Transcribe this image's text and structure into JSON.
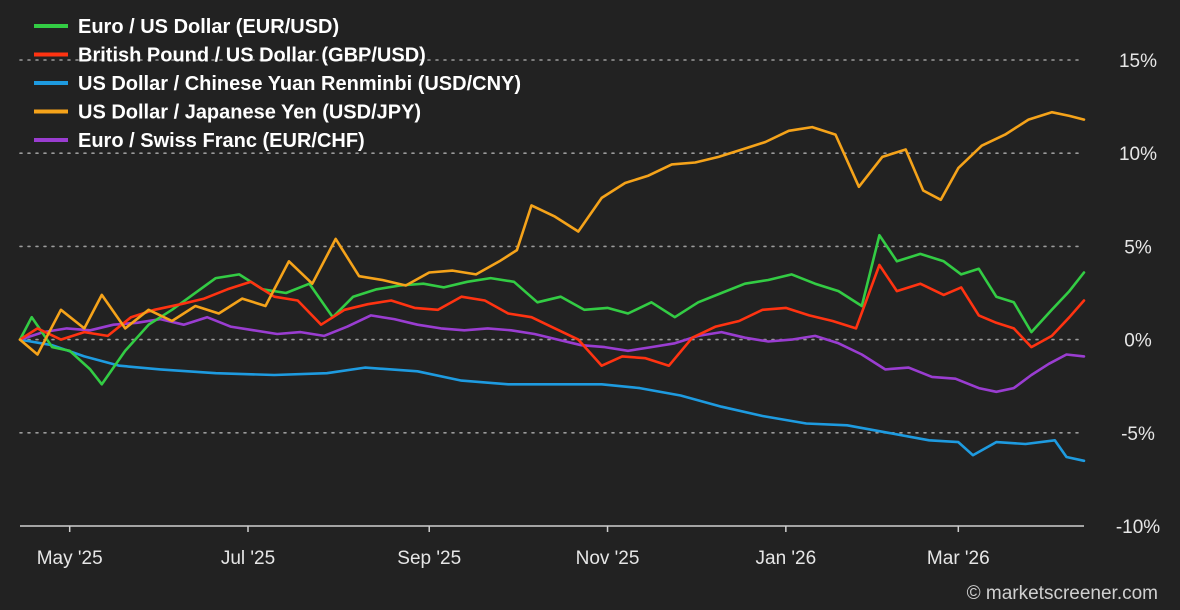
{
  "credit": "© marketscreener.com",
  "chart_data": {
    "type": "line",
    "ylim": [
      -10,
      15
    ],
    "y_ticks": [
      {
        "value": 15,
        "label": "15%"
      },
      {
        "value": 10,
        "label": "10%"
      },
      {
        "value": 5,
        "label": "5%"
      },
      {
        "value": 0,
        "label": "0%"
      },
      {
        "value": -5,
        "label": "-5%"
      },
      {
        "value": -10,
        "label": "-10%"
      }
    ],
    "x_range": [
      "2025-04-14",
      "2026-04-13"
    ],
    "x_ticks": [
      {
        "date": "2025-05-01",
        "label": "May '25"
      },
      {
        "date": "2025-07-01",
        "label": "Jul '25"
      },
      {
        "date": "2025-09-01",
        "label": "Sep '25"
      },
      {
        "date": "2025-11-01",
        "label": "Nov '25"
      },
      {
        "date": "2026-01-01",
        "label": "Jan '26"
      },
      {
        "date": "2026-03-01",
        "label": "Mar '26"
      }
    ],
    "grid": true,
    "legend_position": "top-left",
    "series": [
      {
        "name": "Euro / US Dollar (EUR/USD)",
        "color": "#33cc44",
        "points": [
          [
            "2025-04-14",
            0.0
          ],
          [
            "2025-04-18",
            1.2
          ],
          [
            "2025-04-25",
            -0.4
          ],
          [
            "2025-05-01",
            -0.6
          ],
          [
            "2025-05-08",
            -1.6
          ],
          [
            "2025-05-12",
            -2.4
          ],
          [
            "2025-05-20",
            -0.6
          ],
          [
            "2025-05-28",
            0.8
          ],
          [
            "2025-06-05",
            1.6
          ],
          [
            "2025-06-12",
            2.4
          ],
          [
            "2025-06-20",
            3.3
          ],
          [
            "2025-06-28",
            3.5
          ],
          [
            "2025-07-06",
            2.7
          ],
          [
            "2025-07-14",
            2.5
          ],
          [
            "2025-07-22",
            3.0
          ],
          [
            "2025-07-30",
            1.2
          ],
          [
            "2025-08-06",
            2.3
          ],
          [
            "2025-08-14",
            2.7
          ],
          [
            "2025-08-22",
            2.9
          ],
          [
            "2025-08-30",
            3.0
          ],
          [
            "2025-09-06",
            2.8
          ],
          [
            "2025-09-14",
            3.1
          ],
          [
            "2025-09-22",
            3.3
          ],
          [
            "2025-09-30",
            3.1
          ],
          [
            "2025-10-08",
            2.0
          ],
          [
            "2025-10-16",
            2.3
          ],
          [
            "2025-10-24",
            1.6
          ],
          [
            "2025-11-01",
            1.7
          ],
          [
            "2025-11-08",
            1.4
          ],
          [
            "2025-11-16",
            2.0
          ],
          [
            "2025-11-24",
            1.2
          ],
          [
            "2025-12-02",
            2.0
          ],
          [
            "2025-12-10",
            2.5
          ],
          [
            "2025-12-18",
            3.0
          ],
          [
            "2025-12-26",
            3.2
          ],
          [
            "2026-01-03",
            3.5
          ],
          [
            "2026-01-11",
            3.0
          ],
          [
            "2026-01-19",
            2.6
          ],
          [
            "2026-01-27",
            1.8
          ],
          [
            "2026-02-02",
            5.6
          ],
          [
            "2026-02-08",
            4.2
          ],
          [
            "2026-02-16",
            4.6
          ],
          [
            "2026-02-24",
            4.2
          ],
          [
            "2026-03-02",
            3.5
          ],
          [
            "2026-03-08",
            3.8
          ],
          [
            "2026-03-14",
            2.3
          ],
          [
            "2026-03-20",
            2.0
          ],
          [
            "2026-03-26",
            0.4
          ],
          [
            "2026-04-02",
            1.6
          ],
          [
            "2026-04-08",
            2.6
          ],
          [
            "2026-04-13",
            3.6
          ]
        ]
      },
      {
        "name": "British Pound / US Dollar (GBP/USD)",
        "color": "#ff3311",
        "points": [
          [
            "2025-04-14",
            0.0
          ],
          [
            "2025-04-20",
            0.6
          ],
          [
            "2025-04-28",
            0.0
          ],
          [
            "2025-05-06",
            0.4
          ],
          [
            "2025-05-14",
            0.2
          ],
          [
            "2025-05-22",
            1.2
          ],
          [
            "2025-05-30",
            1.6
          ],
          [
            "2025-06-08",
            1.9
          ],
          [
            "2025-06-16",
            2.2
          ],
          [
            "2025-06-24",
            2.7
          ],
          [
            "2025-07-02",
            3.1
          ],
          [
            "2025-07-10",
            2.3
          ],
          [
            "2025-07-18",
            2.1
          ],
          [
            "2025-07-26",
            0.8
          ],
          [
            "2025-08-03",
            1.6
          ],
          [
            "2025-08-11",
            1.9
          ],
          [
            "2025-08-19",
            2.1
          ],
          [
            "2025-08-27",
            1.7
          ],
          [
            "2025-09-04",
            1.6
          ],
          [
            "2025-09-12",
            2.3
          ],
          [
            "2025-09-20",
            2.1
          ],
          [
            "2025-09-28",
            1.4
          ],
          [
            "2025-10-06",
            1.2
          ],
          [
            "2025-10-14",
            0.6
          ],
          [
            "2025-10-22",
            0.0
          ],
          [
            "2025-10-30",
            -1.4
          ],
          [
            "2025-11-06",
            -0.9
          ],
          [
            "2025-11-14",
            -1.0
          ],
          [
            "2025-11-22",
            -1.4
          ],
          [
            "2025-11-30",
            0.1
          ],
          [
            "2025-12-08",
            0.7
          ],
          [
            "2025-12-16",
            1.0
          ],
          [
            "2025-12-24",
            1.6
          ],
          [
            "2026-01-01",
            1.7
          ],
          [
            "2026-01-09",
            1.3
          ],
          [
            "2026-01-17",
            1.0
          ],
          [
            "2026-01-25",
            0.6
          ],
          [
            "2026-02-02",
            4.0
          ],
          [
            "2026-02-08",
            2.6
          ],
          [
            "2026-02-16",
            3.0
          ],
          [
            "2026-02-24",
            2.4
          ],
          [
            "2026-03-02",
            2.8
          ],
          [
            "2026-03-08",
            1.3
          ],
          [
            "2026-03-14",
            0.9
          ],
          [
            "2026-03-20",
            0.6
          ],
          [
            "2026-03-26",
            -0.4
          ],
          [
            "2026-04-02",
            0.2
          ],
          [
            "2026-04-08",
            1.2
          ],
          [
            "2026-04-13",
            2.1
          ]
        ]
      },
      {
        "name": "US Dollar / Chinese Yuan Renminbi (USD/CNY)",
        "color": "#1e9be0",
        "points": [
          [
            "2025-04-14",
            0.0
          ],
          [
            "2025-04-25",
            -0.3
          ],
          [
            "2025-05-06",
            -0.9
          ],
          [
            "2025-05-18",
            -1.4
          ],
          [
            "2025-06-01",
            -1.6
          ],
          [
            "2025-06-20",
            -1.8
          ],
          [
            "2025-07-10",
            -1.9
          ],
          [
            "2025-07-28",
            -1.8
          ],
          [
            "2025-08-10",
            -1.5
          ],
          [
            "2025-08-28",
            -1.7
          ],
          [
            "2025-09-12",
            -2.2
          ],
          [
            "2025-09-28",
            -2.4
          ],
          [
            "2025-10-15",
            -2.4
          ],
          [
            "2025-10-30",
            -2.4
          ],
          [
            "2025-11-12",
            -2.6
          ],
          [
            "2025-11-26",
            -3.0
          ],
          [
            "2025-12-10",
            -3.6
          ],
          [
            "2025-12-24",
            -4.1
          ],
          [
            "2026-01-08",
            -4.5
          ],
          [
            "2026-01-22",
            -4.6
          ],
          [
            "2026-02-05",
            -5.0
          ],
          [
            "2026-02-19",
            -5.4
          ],
          [
            "2026-03-01",
            -5.5
          ],
          [
            "2026-03-06",
            -6.2
          ],
          [
            "2026-03-14",
            -5.5
          ],
          [
            "2026-03-24",
            -5.6
          ],
          [
            "2026-04-03",
            -5.4
          ],
          [
            "2026-04-07",
            -6.3
          ],
          [
            "2026-04-13",
            -6.5
          ]
        ]
      },
      {
        "name": "US Dollar / Japanese Yen (USD/JPY)",
        "color": "#f5a31a",
        "points": [
          [
            "2025-04-14",
            0.0
          ],
          [
            "2025-04-20",
            -0.8
          ],
          [
            "2025-04-28",
            1.6
          ],
          [
            "2025-05-06",
            0.6
          ],
          [
            "2025-05-12",
            2.4
          ],
          [
            "2025-05-20",
            0.6
          ],
          [
            "2025-05-28",
            1.6
          ],
          [
            "2025-06-05",
            1.0
          ],
          [
            "2025-06-13",
            1.8
          ],
          [
            "2025-06-21",
            1.4
          ],
          [
            "2025-06-29",
            2.2
          ],
          [
            "2025-07-07",
            1.8
          ],
          [
            "2025-07-15",
            4.2
          ],
          [
            "2025-07-23",
            3.0
          ],
          [
            "2025-07-31",
            5.4
          ],
          [
            "2025-08-08",
            3.4
          ],
          [
            "2025-08-16",
            3.2
          ],
          [
            "2025-08-24",
            2.9
          ],
          [
            "2025-09-01",
            3.6
          ],
          [
            "2025-09-09",
            3.7
          ],
          [
            "2025-09-17",
            3.5
          ],
          [
            "2025-09-25",
            4.2
          ],
          [
            "2025-10-01",
            4.8
          ],
          [
            "2025-10-06",
            7.2
          ],
          [
            "2025-10-14",
            6.6
          ],
          [
            "2025-10-22",
            5.8
          ],
          [
            "2025-10-30",
            7.6
          ],
          [
            "2025-11-07",
            8.4
          ],
          [
            "2025-11-15",
            8.8
          ],
          [
            "2025-11-23",
            9.4
          ],
          [
            "2025-12-01",
            9.5
          ],
          [
            "2025-12-09",
            9.8
          ],
          [
            "2025-12-17",
            10.2
          ],
          [
            "2025-12-25",
            10.6
          ],
          [
            "2026-01-02",
            11.2
          ],
          [
            "2026-01-10",
            11.4
          ],
          [
            "2026-01-18",
            11.0
          ],
          [
            "2026-01-26",
            8.2
          ],
          [
            "2026-02-03",
            9.8
          ],
          [
            "2026-02-11",
            10.2
          ],
          [
            "2026-02-17",
            8.0
          ],
          [
            "2026-02-23",
            7.5
          ],
          [
            "2026-03-01",
            9.2
          ],
          [
            "2026-03-09",
            10.4
          ],
          [
            "2026-03-17",
            11.0
          ],
          [
            "2026-03-25",
            11.8
          ],
          [
            "2026-04-02",
            12.2
          ],
          [
            "2026-04-08",
            12.0
          ],
          [
            "2026-04-13",
            11.8
          ]
        ]
      },
      {
        "name": "Euro / Swiss Franc (EUR/CHF)",
        "color": "#9a3dd1",
        "points": [
          [
            "2025-04-14",
            0.0
          ],
          [
            "2025-04-22",
            0.4
          ],
          [
            "2025-04-30",
            0.6
          ],
          [
            "2025-05-08",
            0.5
          ],
          [
            "2025-05-16",
            0.8
          ],
          [
            "2025-05-24",
            0.9
          ],
          [
            "2025-06-01",
            1.1
          ],
          [
            "2025-06-09",
            0.8
          ],
          [
            "2025-06-17",
            1.2
          ],
          [
            "2025-06-25",
            0.7
          ],
          [
            "2025-07-03",
            0.5
          ],
          [
            "2025-07-11",
            0.3
          ],
          [
            "2025-07-19",
            0.4
          ],
          [
            "2025-07-27",
            0.2
          ],
          [
            "2025-08-04",
            0.7
          ],
          [
            "2025-08-12",
            1.3
          ],
          [
            "2025-08-20",
            1.1
          ],
          [
            "2025-08-28",
            0.8
          ],
          [
            "2025-09-05",
            0.6
          ],
          [
            "2025-09-13",
            0.5
          ],
          [
            "2025-09-21",
            0.6
          ],
          [
            "2025-09-29",
            0.5
          ],
          [
            "2025-10-07",
            0.3
          ],
          [
            "2025-10-15",
            0.0
          ],
          [
            "2025-10-23",
            -0.3
          ],
          [
            "2025-10-31",
            -0.4
          ],
          [
            "2025-11-08",
            -0.6
          ],
          [
            "2025-11-16",
            -0.4
          ],
          [
            "2025-11-24",
            -0.2
          ],
          [
            "2025-12-02",
            0.2
          ],
          [
            "2025-12-10",
            0.4
          ],
          [
            "2025-12-18",
            0.1
          ],
          [
            "2025-12-26",
            -0.1
          ],
          [
            "2026-01-03",
            0.0
          ],
          [
            "2026-01-11",
            0.2
          ],
          [
            "2026-01-19",
            -0.2
          ],
          [
            "2026-01-27",
            -0.8
          ],
          [
            "2026-02-04",
            -1.6
          ],
          [
            "2026-02-12",
            -1.5
          ],
          [
            "2026-02-20",
            -2.0
          ],
          [
            "2026-02-28",
            -2.1
          ],
          [
            "2026-03-08",
            -2.6
          ],
          [
            "2026-03-14",
            -2.8
          ],
          [
            "2026-03-20",
            -2.6
          ],
          [
            "2026-03-26",
            -1.9
          ],
          [
            "2026-04-01",
            -1.3
          ],
          [
            "2026-04-07",
            -0.8
          ],
          [
            "2026-04-13",
            -0.9
          ]
        ]
      }
    ]
  }
}
